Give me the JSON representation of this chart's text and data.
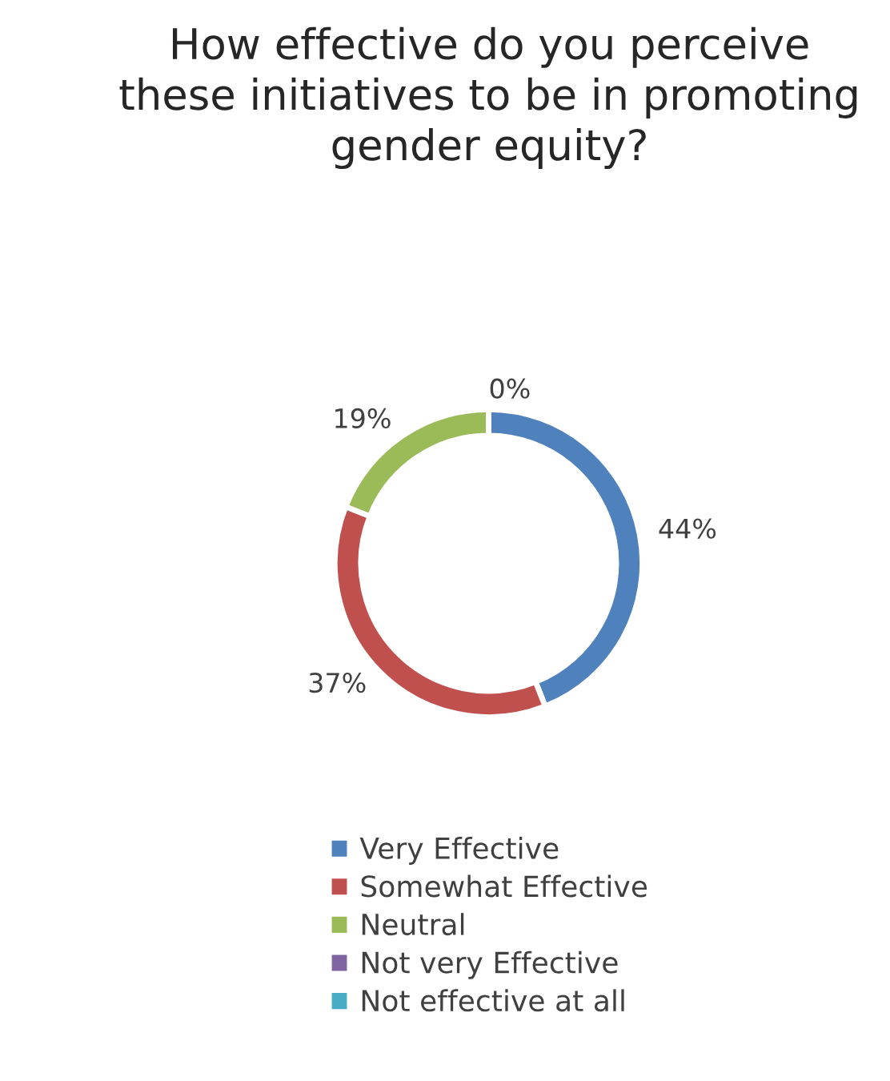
{
  "chart_data": {
    "type": "donut",
    "title": "How effective do you perceive these initiatives to be in promoting gender equity?",
    "categories": [
      "Very Effective",
      "Somewhat Effective",
      "Neutral",
      "Not very Effective",
      "Not effective at all"
    ],
    "values": [
      44,
      37,
      19,
      0,
      0
    ],
    "colors": [
      "#4f81bd",
      "#c0504d",
      "#9bbb59",
      "#8064a2",
      "#4bacc6"
    ],
    "value_labels": [
      "44%",
      "37%",
      "19%",
      "0%",
      null
    ],
    "legend": "bottom"
  }
}
